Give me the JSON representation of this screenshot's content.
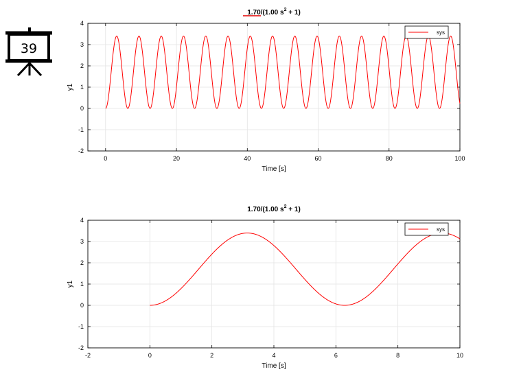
{
  "slide": {
    "number": "39"
  },
  "chart_data": [
    {
      "type": "line",
      "title": "1.70/(1.00 s² + 1)",
      "title_parts": {
        "a": "1.70/(1.00 s",
        "sup": "2",
        "b": " + 1)"
      },
      "xlabel": "Time [s]",
      "ylabel": "y1",
      "xlim": [
        -5,
        100
      ],
      "ylim": [
        -2,
        4
      ],
      "xticks": [
        0,
        20,
        40,
        60,
        80,
        100
      ],
      "yticks": [
        -2,
        -1,
        0,
        1,
        2,
        3,
        4
      ],
      "grid": true,
      "legend_position": "top-right",
      "series": [
        {
          "name": "sys",
          "color": "#ff0000",
          "function": "y = 1.70 * (1 - cos(t))",
          "x_start": 0,
          "x_end": 100
        }
      ]
    },
    {
      "type": "line",
      "title": "1.70/(1.00 s² + 1)",
      "title_parts": {
        "a": "1.70/(1.00 s",
        "sup": "2",
        "b": " + 1)"
      },
      "xlabel": "Time [s]",
      "ylabel": "y1",
      "xlim": [
        -2,
        10
      ],
      "ylim": [
        -2,
        4
      ],
      "xticks": [
        -2,
        0,
        2,
        4,
        6,
        8,
        10
      ],
      "yticks": [
        -2,
        -1,
        0,
        1,
        2,
        3,
        4
      ],
      "grid": true,
      "legend_position": "top-right",
      "series": [
        {
          "name": "sys",
          "color": "#ff0000",
          "function": "y = 1.70 * (1 - cos(t))",
          "x_start": 0,
          "x_end": 10
        }
      ]
    }
  ]
}
